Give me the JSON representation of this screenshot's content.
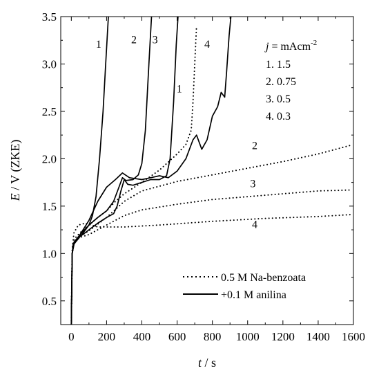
{
  "chart_data": {
    "type": "line",
    "title": "",
    "xlabel": {
      "var": "t",
      "unit": " / s"
    },
    "ylabel": {
      "var": "E",
      "unit": " / V (ZKE)"
    },
    "xlim": [
      -60,
      1600
    ],
    "ylim": [
      0.25,
      3.5
    ],
    "x_ticks": [
      0,
      200,
      400,
      600,
      800,
      1000,
      1200,
      1400,
      1600
    ],
    "y_ticks": [
      0.5,
      1.0,
      1.5,
      2.0,
      2.5,
      3.0,
      3.5
    ],
    "y_tick_labels": [
      "0.5",
      "1.0",
      "1.5",
      "2.0",
      "2.5",
      "3.0",
      "3.5"
    ],
    "grid": false,
    "legend": {
      "placement": "bottom-right",
      "entries": [
        {
          "label": "0.5 M Na-benzoata",
          "style": "dotted"
        },
        {
          "label": "+0.1 M anilina",
          "style": "solid"
        }
      ]
    },
    "current_density_legend": {
      "header": "j = mAcm-2",
      "header_var": "j",
      "header_rest": " = mAcm",
      "header_sup": "-2",
      "items": [
        "1. 1.5",
        "2. 0.75",
        "3. 0.5",
        "4. 0.3"
      ]
    },
    "series": [
      {
        "id": "benzoate-1",
        "label": "1",
        "style": "dotted",
        "points": [
          [
            0,
            0.25
          ],
          [
            5,
            1.0
          ],
          [
            15,
            1.15
          ],
          [
            50,
            1.22
          ],
          [
            100,
            1.3
          ],
          [
            150,
            1.38
          ],
          [
            200,
            1.45
          ],
          [
            250,
            1.55
          ],
          [
            300,
            1.63
          ],
          [
            400,
            1.75
          ],
          [
            500,
            1.88
          ],
          [
            600,
            2.05
          ],
          [
            650,
            2.15
          ],
          [
            680,
            2.3
          ],
          [
            690,
            2.6
          ],
          [
            700,
            3.0
          ],
          [
            710,
            3.4
          ]
        ]
      },
      {
        "id": "benzoate-2",
        "label": "2",
        "style": "dotted",
        "points": [
          [
            0,
            0.25
          ],
          [
            5,
            1.0
          ],
          [
            15,
            1.12
          ],
          [
            50,
            1.18
          ],
          [
            100,
            1.24
          ],
          [
            200,
            1.38
          ],
          [
            300,
            1.55
          ],
          [
            400,
            1.66
          ],
          [
            600,
            1.76
          ],
          [
            800,
            1.83
          ],
          [
            1000,
            1.9
          ],
          [
            1200,
            1.97
          ],
          [
            1400,
            2.05
          ],
          [
            1580,
            2.14
          ]
        ]
      },
      {
        "id": "benzoate-3",
        "label": "3",
        "style": "dotted",
        "points": [
          [
            0,
            0.25
          ],
          [
            5,
            1.0
          ],
          [
            15,
            1.12
          ],
          [
            50,
            1.17
          ],
          [
            100,
            1.2
          ],
          [
            200,
            1.3
          ],
          [
            300,
            1.4
          ],
          [
            400,
            1.46
          ],
          [
            600,
            1.52
          ],
          [
            800,
            1.57
          ],
          [
            1000,
            1.6
          ],
          [
            1200,
            1.63
          ],
          [
            1400,
            1.66
          ],
          [
            1580,
            1.67
          ]
        ]
      },
      {
        "id": "benzoate-4",
        "label": "4",
        "style": "dotted",
        "points": [
          [
            0,
            0.25
          ],
          [
            5,
            1.05
          ],
          [
            15,
            1.22
          ],
          [
            40,
            1.3
          ],
          [
            80,
            1.32
          ],
          [
            150,
            1.28
          ],
          [
            300,
            1.28
          ],
          [
            500,
            1.3
          ],
          [
            800,
            1.34
          ],
          [
            1100,
            1.37
          ],
          [
            1400,
            1.39
          ],
          [
            1580,
            1.41
          ]
        ]
      },
      {
        "id": "aniline-1",
        "label": "1",
        "style": "solid",
        "points": [
          [
            0,
            0.25
          ],
          [
            5,
            1.0
          ],
          [
            10,
            1.1
          ],
          [
            30,
            1.15
          ],
          [
            60,
            1.2
          ],
          [
            100,
            1.3
          ],
          [
            120,
            1.4
          ],
          [
            140,
            1.6
          ],
          [
            160,
            2.0
          ],
          [
            180,
            2.5
          ],
          [
            195,
            3.0
          ],
          [
            210,
            3.5
          ]
        ]
      },
      {
        "id": "aniline-2",
        "label": "2",
        "style": "solid",
        "points": [
          [
            0,
            0.25
          ],
          [
            5,
            1.0
          ],
          [
            15,
            1.12
          ],
          [
            50,
            1.2
          ],
          [
            100,
            1.3
          ],
          [
            150,
            1.38
          ],
          [
            200,
            1.45
          ],
          [
            240,
            1.55
          ],
          [
            270,
            1.7
          ],
          [
            290,
            1.8
          ],
          [
            310,
            1.77
          ],
          [
            350,
            1.78
          ],
          [
            380,
            1.83
          ],
          [
            400,
            1.95
          ],
          [
            420,
            2.3
          ],
          [
            440,
            3.0
          ],
          [
            455,
            3.5
          ]
        ]
      },
      {
        "id": "aniline-3",
        "label": "3",
        "style": "solid",
        "points": [
          [
            0,
            0.25
          ],
          [
            5,
            1.0
          ],
          [
            15,
            1.1
          ],
          [
            50,
            1.18
          ],
          [
            100,
            1.25
          ],
          [
            150,
            1.32
          ],
          [
            200,
            1.38
          ],
          [
            240,
            1.42
          ],
          [
            260,
            1.5
          ],
          [
            280,
            1.65
          ],
          [
            300,
            1.78
          ],
          [
            320,
            1.73
          ],
          [
            350,
            1.72
          ],
          [
            400,
            1.75
          ],
          [
            450,
            1.78
          ],
          [
            500,
            1.78
          ],
          [
            540,
            1.82
          ],
          [
            560,
            2.0
          ],
          [
            580,
            2.6
          ],
          [
            595,
            3.2
          ],
          [
            605,
            3.5
          ]
        ]
      },
      {
        "id": "aniline-4",
        "label": "4",
        "style": "solid",
        "points": [
          [
            0,
            0.25
          ],
          [
            5,
            1.0
          ],
          [
            15,
            1.1
          ],
          [
            50,
            1.2
          ],
          [
            100,
            1.35
          ],
          [
            150,
            1.55
          ],
          [
            200,
            1.7
          ],
          [
            250,
            1.78
          ],
          [
            290,
            1.85
          ],
          [
            330,
            1.8
          ],
          [
            400,
            1.78
          ],
          [
            450,
            1.8
          ],
          [
            500,
            1.82
          ],
          [
            550,
            1.8
          ],
          [
            600,
            1.87
          ],
          [
            650,
            2.0
          ],
          [
            690,
            2.2
          ],
          [
            710,
            2.25
          ],
          [
            740,
            2.1
          ],
          [
            770,
            2.2
          ],
          [
            800,
            2.45
          ],
          [
            830,
            2.55
          ],
          [
            850,
            2.7
          ],
          [
            870,
            2.65
          ],
          [
            880,
            2.9
          ],
          [
            895,
            3.3
          ],
          [
            905,
            3.5
          ]
        ]
      }
    ],
    "annotations": [
      {
        "text": "1",
        "x": 155,
        "y": 3.17
      },
      {
        "text": "2",
        "x": 355,
        "y": 3.22
      },
      {
        "text": "3",
        "x": 475,
        "y": 3.22
      },
      {
        "text": "4",
        "x": 770,
        "y": 3.17
      },
      {
        "text": "1",
        "x": 613,
        "y": 2.7
      },
      {
        "text": "2",
        "x": 1040,
        "y": 2.1
      },
      {
        "text": "3",
        "x": 1030,
        "y": 1.7
      },
      {
        "text": "4",
        "x": 1040,
        "y": 1.27
      }
    ]
  }
}
